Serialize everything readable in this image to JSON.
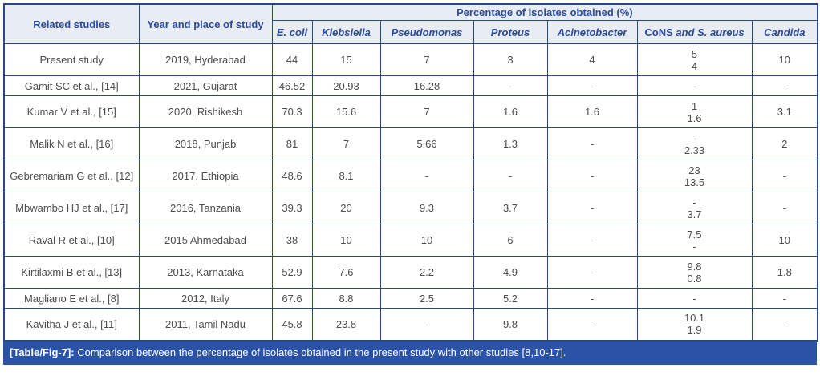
{
  "headers": {
    "related": "Related studies",
    "year": "Year and place of study",
    "span": "Percentage of isolates obtained (%)",
    "organisms": [
      "E. coli",
      "Klebsiella",
      "Pseudomonas",
      "Proteus",
      "Acinetobacter"
    ],
    "cons_plain": "CoNS ",
    "cons_italic": "and S. aureus",
    "candida": "Candida"
  },
  "rows": [
    {
      "study": "Present study",
      "year": "2019, Hyderabad",
      "values": [
        "44",
        "15",
        "7",
        "3",
        "4",
        "5\n4",
        "10"
      ]
    },
    {
      "study": "Gamit SC et al., [14]",
      "year": "2021, Gujarat",
      "values": [
        "46.52",
        "20.93",
        "16.28",
        "-",
        "-",
        "-",
        "-"
      ]
    },
    {
      "study": "Kumar V et al., [15]",
      "year": "2020, Rishikesh",
      "values": [
        "70.3",
        "15.6",
        "7",
        "1.6",
        "1.6",
        "1\n1.6",
        "3.1"
      ]
    },
    {
      "study": "Malik N et al., [16]",
      "year": "2018, Punjab",
      "values": [
        "81",
        "7",
        "5.66",
        "1.3",
        "-",
        "-\n2.33",
        "2"
      ]
    },
    {
      "study": "Gebremariam G et al., [12]",
      "year": "2017, Ethiopia",
      "values": [
        "48.6",
        "8.1",
        "-",
        "-",
        "-",
        "23\n13.5",
        "-"
      ]
    },
    {
      "study": "Mbwambo HJ et al., [17]",
      "year": "2016, Tanzania",
      "values": [
        "39.3",
        "20",
        "9.3",
        "3.7",
        "-",
        "-\n3.7",
        "-"
      ]
    },
    {
      "study": "Raval R et al., [10]",
      "year": "2015 Ahmedabad",
      "values": [
        "38",
        "10",
        "10",
        "6",
        "-",
        "7.5\n-",
        "10"
      ]
    },
    {
      "study": "Kirtilaxmi B et al., [13]",
      "year": "2013, Karnataka",
      "values": [
        "52.9",
        "7.6",
        "2.2",
        "4.9",
        "-",
        "9.8\n0.8",
        "1.8"
      ]
    },
    {
      "study": "Magliano E et al., [8]",
      "year": "2012, Italy",
      "values": [
        "67.6",
        "8.8",
        "2.5",
        "5.2",
        "-",
        "-",
        "-"
      ]
    },
    {
      "study": "Kavitha J et al., [11]",
      "year": "2011, Tamil Nadu",
      "values": [
        "45.8",
        "23.8",
        "-",
        "9.8",
        "-",
        "10.1\n1.9",
        "-"
      ]
    }
  ],
  "footer": {
    "label": "[Table/Fig-7]:",
    "text": " Comparison between the percentage of isolates obtained in the present study with other studies [8,10-17]."
  },
  "colors": {
    "border": "#29497f",
    "header_bg": "#e8ecf4",
    "header_text": "#2b4b9e",
    "body_text": "#4d4d4d",
    "caption_bg": "#2b52a4",
    "caption_text": "#ffffff"
  }
}
